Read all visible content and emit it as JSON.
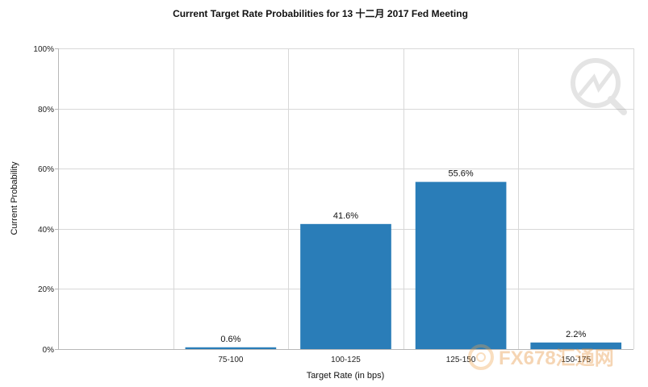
{
  "chart_data": {
    "type": "bar",
    "title": "Current Target Rate Probabilities for 13 十二月 2017 Fed Meeting",
    "xlabel": "Target Rate (in bps)",
    "ylabel": "Current Probability",
    "categories": [
      "",
      "75-100",
      "100-125",
      "125-150",
      "150-175"
    ],
    "values": [
      null,
      0.6,
      41.6,
      55.6,
      2.2
    ],
    "data_labels": [
      "",
      "0.6%",
      "41.6%",
      "55.6%",
      "2.2%"
    ],
    "yticks": [
      "0%",
      "20%",
      "40%",
      "60%",
      "80%",
      "100%"
    ],
    "ylim": [
      0,
      100
    ],
    "grid": true,
    "legend": "none",
    "bar_color": "#2a7db8"
  },
  "watermark": {
    "text": "FX678汇通网"
  }
}
